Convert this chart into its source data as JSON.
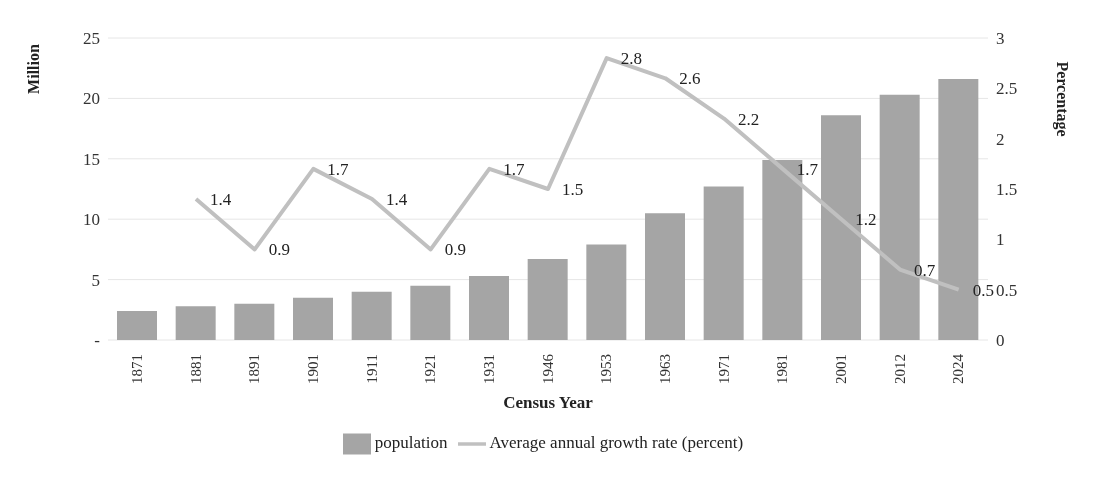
{
  "chart_data": {
    "type": "bar",
    "xlabel": "Census Year",
    "ylabel": "Million",
    "y2label": "Percentage",
    "categories": [
      "1871",
      "1881",
      "1891",
      "1901",
      "1911",
      "1921",
      "1931",
      "1946",
      "1953",
      "1963",
      "1971",
      "1981",
      "2001",
      "2012",
      "2024"
    ],
    "series": [
      {
        "name": "population",
        "color": "#a5a5a5",
        "values": [
          2.4,
          2.8,
          3.0,
          3.5,
          4.0,
          4.5,
          5.3,
          6.7,
          7.9,
          10.5,
          12.7,
          14.9,
          18.6,
          20.3,
          21.6
        ]
      },
      {
        "name": "Average annual growth rate (percent)",
        "type": "line",
        "axis": "y2",
        "color": "#c0c0c0",
        "values": [
          null,
          1.4,
          0.9,
          1.7,
          1.4,
          0.9,
          1.7,
          1.5,
          2.8,
          2.6,
          2.2,
          1.7,
          1.2,
          0.7,
          0.5
        ],
        "value_labels": [
          null,
          "1.4",
          "0.9",
          "1.7",
          "1.4",
          "0.9",
          "1.7",
          "1.5",
          "2.8",
          "2.6",
          "2.2",
          "1.7",
          "1.2",
          "0.7",
          "0.5"
        ]
      }
    ],
    "ylim": [
      0,
      25
    ],
    "yticks": [
      {
        "value": 0,
        "label": "-"
      },
      5,
      10,
      15,
      20,
      25
    ],
    "y2lim": [
      0,
      3
    ],
    "y2ticks": [
      0,
      0.5,
      1,
      1.5,
      2,
      2.5,
      3
    ],
    "grid": "y",
    "legend": "bottom",
    "marker": "none"
  }
}
